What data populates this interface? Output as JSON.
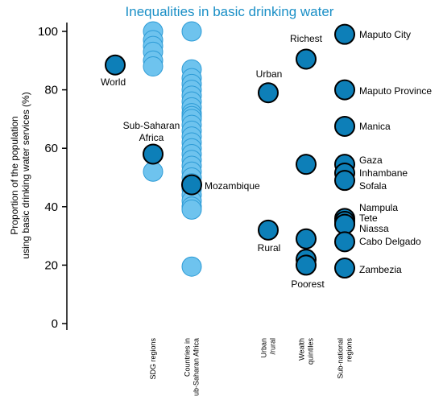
{
  "chart_data": {
    "type": "scatter",
    "title": "Inequalities in basic drinking water",
    "ylabel_lines": [
      "Proportion of the population",
      "using basic drinking water services (%)"
    ],
    "ylim": [
      0,
      100
    ],
    "yticks": [
      0,
      20,
      40,
      60,
      80,
      100
    ],
    "grid": false,
    "colors": {
      "title": "#1a8fc6",
      "highlight": "#0d7fb8",
      "light": "#6ec3ee",
      "light_stroke": "#2d9bd6",
      "dark_stroke": "#000000"
    },
    "categories": [
      {
        "key": "sdg",
        "lines": [
          "SDG regions"
        ]
      },
      {
        "key": "countries",
        "lines": [
          "Countries in",
          "sub-Saharan Africa"
        ]
      },
      {
        "key": "urbanrural",
        "lines": [
          "Urban",
          "/rural"
        ]
      },
      {
        "key": "wealth",
        "lines": [
          "Wealth",
          "quintiles"
        ]
      },
      {
        "key": "subnational",
        "lines": [
          "Sub-national",
          "regions"
        ]
      }
    ],
    "series": [
      {
        "name": "World",
        "category": "sdg",
        "offset": -1,
        "highlight": true,
        "values": [
          88.5
        ]
      },
      {
        "category": "sdg",
        "offset": 0,
        "highlight": false,
        "values": [
          100,
          97,
          95,
          93,
          90,
          88,
          52
        ]
      },
      {
        "name": "Sub-Saharan Africa",
        "category": "sdg",
        "offset": 0,
        "highlight": true,
        "values": [
          58
        ]
      },
      {
        "category": "countries",
        "offset": 0,
        "highlight": false,
        "values": [
          100,
          87,
          84,
          82,
          80,
          78,
          76,
          74,
          72,
          71,
          70,
          68,
          66,
          64,
          62,
          60,
          58,
          56,
          54,
          52,
          50,
          48,
          46,
          44,
          42,
          40,
          39,
          19.5
        ]
      },
      {
        "name": "Mozambique",
        "category": "countries",
        "offset": 0,
        "highlight": true,
        "values": [
          47.5
        ]
      },
      {
        "category": "urbanrural",
        "offset": 0,
        "highlight": true,
        "labels": [
          "Urban",
          "Rural"
        ],
        "values": [
          79,
          32
        ]
      },
      {
        "category": "wealth",
        "offset": 0,
        "highlight": true,
        "labels": [
          "Richest",
          "",
          "",
          "",
          "Poorest"
        ],
        "values": [
          90.5,
          54.5,
          29,
          22,
          20
        ]
      },
      {
        "category": "subnational",
        "offset": 0,
        "highlight": true,
        "labels": [
          "Maputo City",
          "Maputo Province",
          "Manica",
          "Gaza",
          "Inhambane",
          "Sofala",
          "Nampula",
          "Tete",
          "Niassa",
          "Cabo Delgado",
          "Zambezia"
        ],
        "values": [
          99,
          80,
          67.5,
          54.5,
          51.5,
          49,
          36,
          35,
          34,
          28,
          19
        ]
      }
    ],
    "point_labels": {
      "world": "World",
      "ssa_line1": "Sub-Saharan",
      "ssa_line2": "Africa",
      "mozambique": "Mozambique",
      "urban": "Urban",
      "rural": "Rural",
      "richest": "Richest",
      "poorest": "Poorest",
      "maputo_city": "Maputo City",
      "maputo_province": "Maputo Province",
      "manica": "Manica",
      "gaza": "Gaza",
      "inhambane": "Inhambane",
      "sofala": "Sofala",
      "nampula": "Nampula",
      "tete": "Tete",
      "niassa": "Niassa",
      "cabo_delgado": "Cabo Delgado",
      "zambezia": "Zambezia"
    }
  }
}
